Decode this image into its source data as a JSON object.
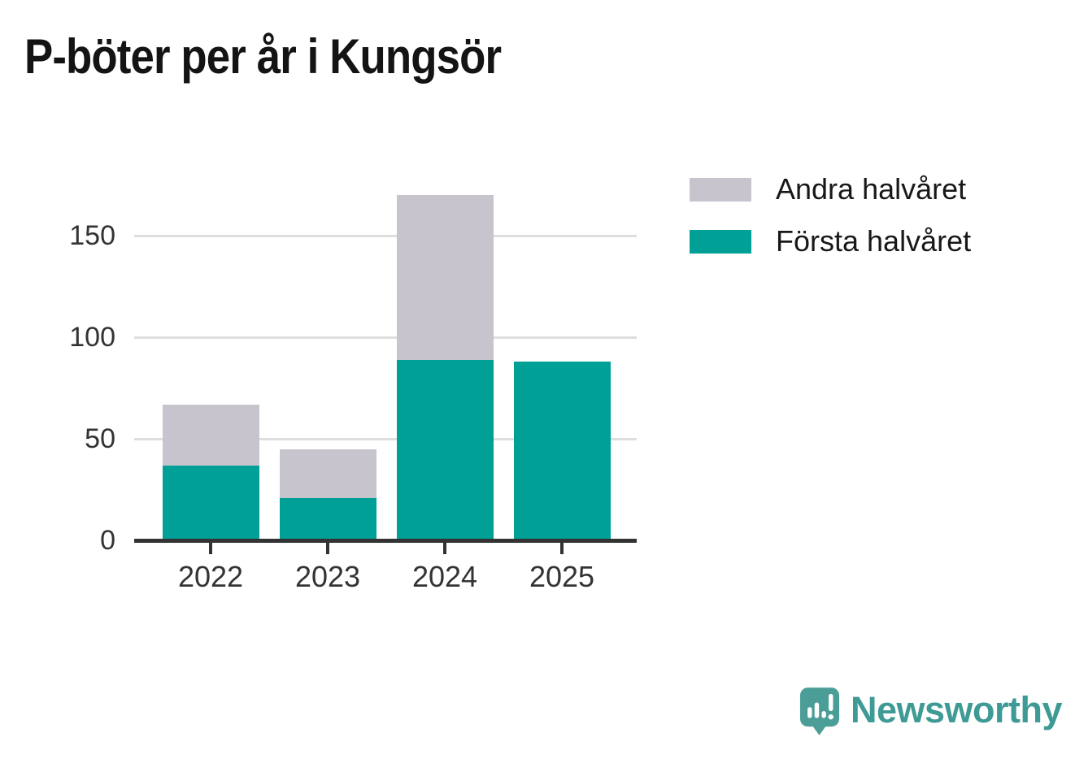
{
  "title": "P-böter per år i Kungsör",
  "legend": [
    {
      "label": "Andra halvåret",
      "color": "#c7c4ce"
    },
    {
      "label": "Första halvåret",
      "color": "#00a096"
    }
  ],
  "brand": {
    "name": "Newsworthy",
    "color": "#3e9a94",
    "icon": "speech-bubble-bar-chart"
  },
  "chart_data": {
    "type": "bar",
    "stacked": true,
    "title": "P-böter per år i Kungsör",
    "categories": [
      "2022",
      "2023",
      "2024",
      "2025"
    ],
    "series": [
      {
        "name": "Första halvåret",
        "color": "#00a096",
        "values": [
          37,
          21,
          89,
          88
        ]
      },
      {
        "name": "Andra halvåret",
        "color": "#c7c4ce",
        "values": [
          30,
          24,
          81,
          0
        ]
      }
    ],
    "totals": [
      67,
      45,
      170,
      88
    ],
    "xlabel": "",
    "ylabel": "",
    "yticks": [
      0,
      50,
      100,
      150
    ],
    "ylim": [
      0,
      171
    ],
    "grid": true,
    "gridline_color": "#dedede",
    "axis_color": "#333333",
    "legend_position": "top-right"
  }
}
